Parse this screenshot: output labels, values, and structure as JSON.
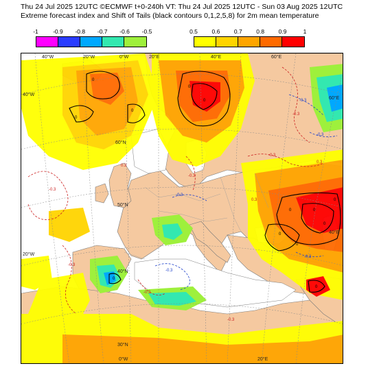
{
  "title_line1": "Thu 24 Jul 2025 12UTC ©ECMWF t+0-240h  VT: Thu 24 Jul 2025 12UTC - Sun 03 Aug 2025 12UTC",
  "title_line2": "Extreme forecast index and Shift of Tails (black contours 0,1,2,5,8) for 2m mean temperature",
  "legend_negative": {
    "ticks": [
      "-1",
      "-0.9",
      "-0.8",
      "-0.7",
      "-0.6",
      "-0.5"
    ],
    "colors": [
      "#ff00ff",
      "#2a3cff",
      "#00a8ff",
      "#33e8b0",
      "#9ef03c"
    ]
  },
  "legend_positive": {
    "ticks": [
      "0.5",
      "0.6",
      "0.7",
      "0.8",
      "0.9",
      "1"
    ],
    "colors": [
      "#ffff00",
      "#ffd400",
      "#ffa500",
      "#ff6a00",
      "#ff0000"
    ]
  },
  "map": {
    "background_land": "#f5c9a0",
    "sea": "#ffffff",
    "lon_labels_top": [
      "40°W",
      "20°W",
      "0°W",
      "20°E",
      "40°E",
      "60°E"
    ],
    "lon_labels_bottom": [
      "0°W",
      "20°E"
    ],
    "lat_labels_left": [
      "40°W",
      "20°W"
    ],
    "lat_labels_right": [
      "60°E",
      "40°E"
    ],
    "lat_labels_inner": [
      "60°N",
      "50°N",
      "40°N",
      "30°N"
    ],
    "contour_labels": [
      "0",
      "0",
      "0",
      "0",
      "0",
      "0",
      "0",
      "0",
      "0",
      "0",
      "0",
      "0",
      "0"
    ],
    "dashed_labels": [
      "-0.3",
      "-0.3",
      "-0.3",
      "-0.3",
      "-0.3",
      "-0.3",
      "-0.3",
      "-0.3",
      "-0.3",
      "-0.3",
      "-0.3",
      "-0.3",
      "0.3",
      "0.3",
      "0.3"
    ]
  }
}
